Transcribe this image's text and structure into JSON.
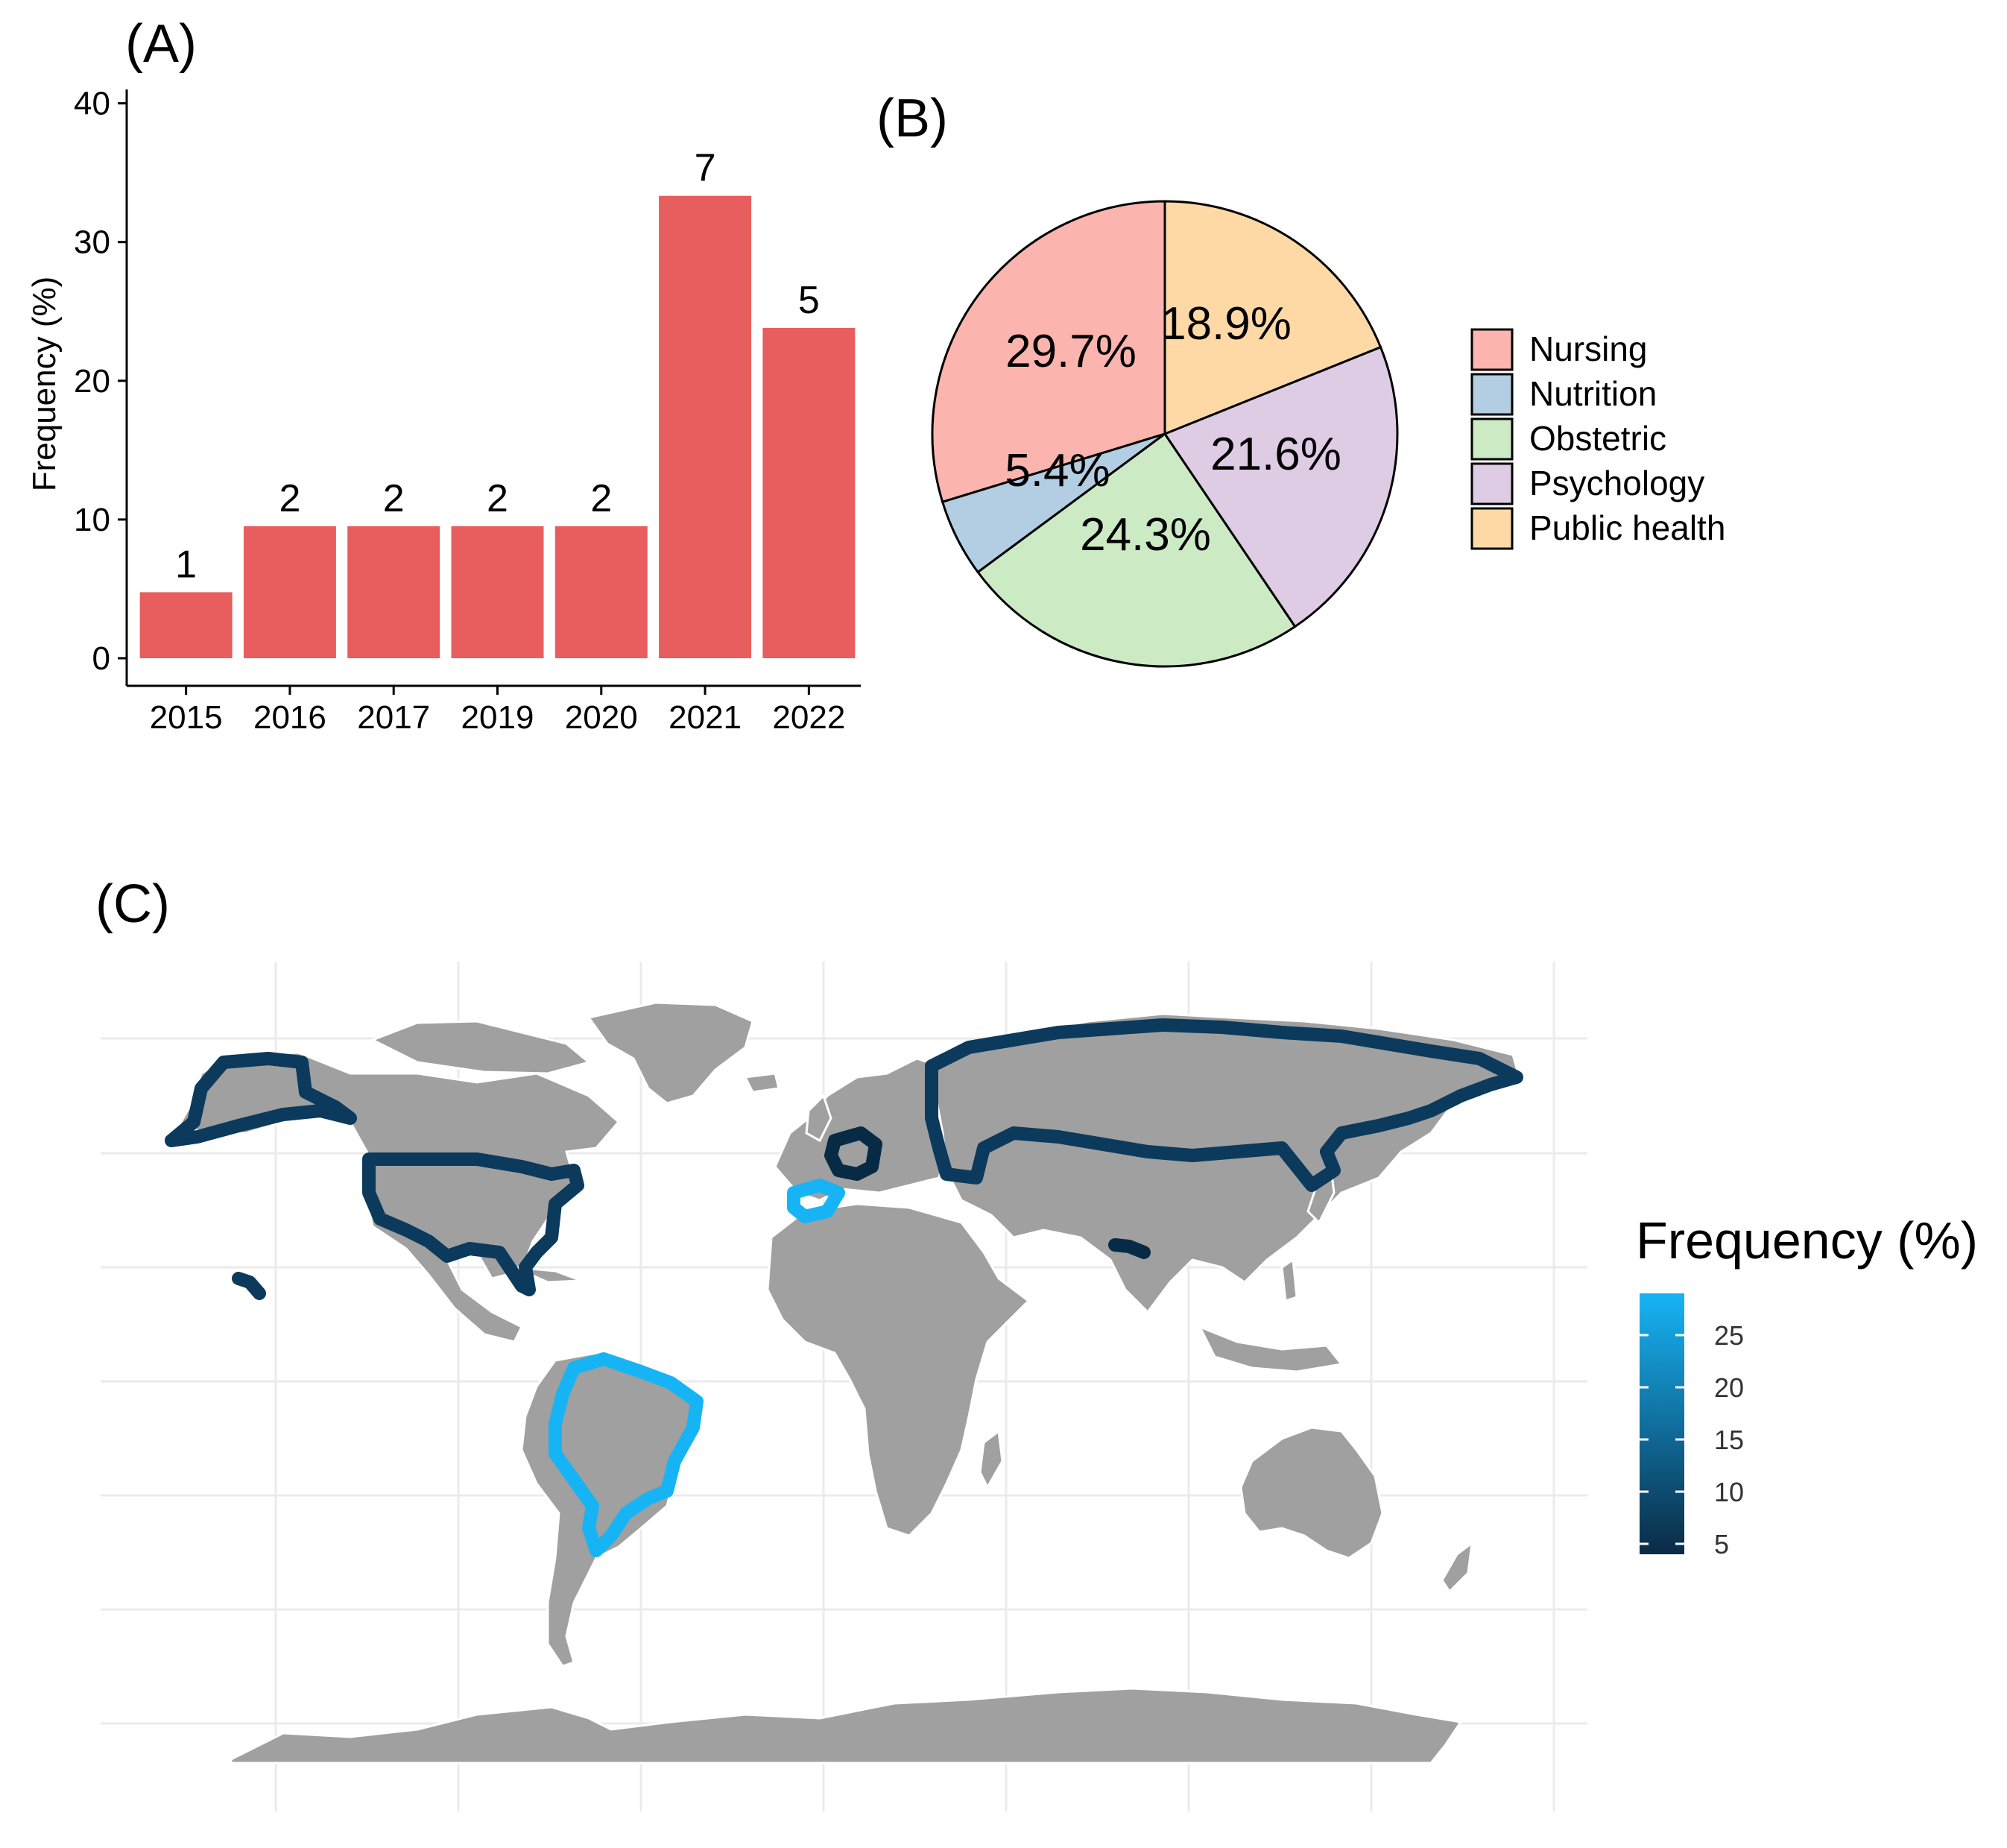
{
  "panels": {
    "a_label": "(A)",
    "b_label": "(B)",
    "c_label": "(C)"
  },
  "chart_data": [
    {
      "type": "bar",
      "panel": "(A)",
      "categories": [
        "2015",
        "2016",
        "2017",
        "2019",
        "2020",
        "2021",
        "2022"
      ],
      "values": [
        4.76,
        9.52,
        9.52,
        9.52,
        9.52,
        33.33,
        23.81
      ],
      "data_labels": [
        "1",
        "2",
        "2",
        "2",
        "2",
        "7",
        "5"
      ],
      "xlabel": "",
      "ylabel": "Frequency (%)",
      "ylim": [
        0,
        41
      ],
      "yticks": [
        0,
        10,
        20,
        30,
        40
      ],
      "bar_color": "#E85D5D",
      "grid": false
    },
    {
      "type": "pie",
      "panel": "(B)",
      "labels": [
        "Nursing",
        "Nutrition",
        "Obstetric",
        "Psychology",
        "Public health"
      ],
      "values": [
        29.7,
        5.4,
        24.3,
        21.6,
        18.9
      ],
      "slice_labels": [
        "29.7%",
        "5.4%",
        "24.3%",
        "21.6%",
        "18.9%"
      ],
      "colors": [
        "#FBB4AE",
        "#B3CDE3",
        "#CCEBC5",
        "#DECBE4",
        "#FED9A6"
      ],
      "legend_position": "right"
    },
    {
      "type": "map",
      "panel": "(C)",
      "legend_title": "Frequency (%)",
      "legend_ticks": [
        5,
        10,
        15,
        20,
        25
      ],
      "legend_range": [
        4,
        29
      ],
      "color_low": "#0B2A45",
      "color_high": "#16B4F5",
      "land_color": "#A0A0A0",
      "highlighted_regions": [
        {
          "region": "Brazil",
          "value": 28
        },
        {
          "region": "Spain",
          "value": 26
        },
        {
          "region": "France",
          "value": 4.5
        },
        {
          "region": "United States",
          "value": 8
        },
        {
          "region": "Russia",
          "value": 7
        },
        {
          "region": "Nepal",
          "value": 4.5
        }
      ]
    }
  ]
}
